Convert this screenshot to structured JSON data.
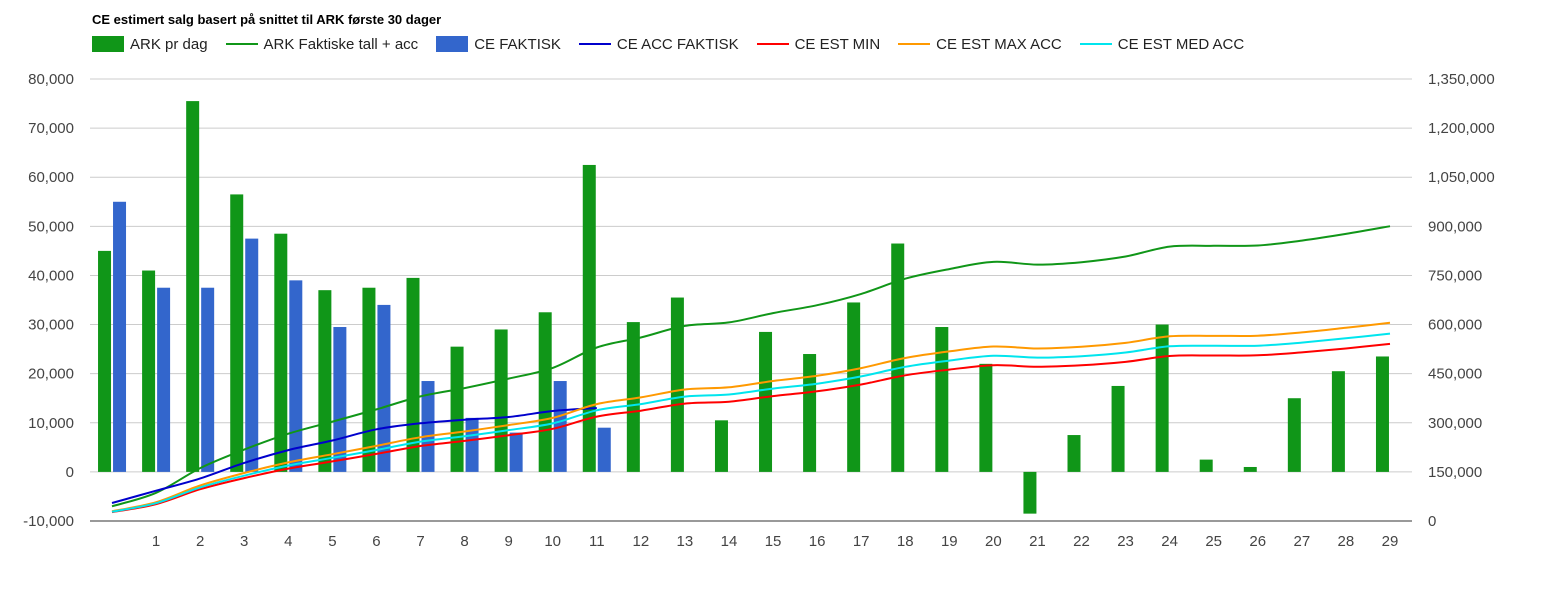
{
  "chart_data": {
    "type": "bar",
    "title": "CE estimert salg basert på snittet til ARK første 30 dager",
    "categories": [
      "",
      "1",
      "2",
      "3",
      "4",
      "5",
      "6",
      "7",
      "8",
      "9",
      "10",
      "11",
      "12",
      "13",
      "14",
      "15",
      "16",
      "17",
      "18",
      "19",
      "20",
      "21",
      "22",
      "23",
      "24",
      "25",
      "26",
      "27",
      "28",
      "29"
    ],
    "left_axis": {
      "ticks": [
        "80,000",
        "70,000",
        "60,000",
        "50,000",
        "40,000",
        "30,000",
        "20,000",
        "10,000",
        "0",
        "-10,000"
      ],
      "ylim": [
        -10000,
        80000
      ]
    },
    "right_axis": {
      "ticks": [
        "1,350,000",
        "1,200,000",
        "1,050,000",
        "900,000",
        "750,000",
        "600,000",
        "450,000",
        "300,000",
        "150,000",
        "0"
      ],
      "ylim": [
        0,
        1350000
      ]
    },
    "grid": true,
    "legend_position": "top",
    "series": [
      {
        "name": "ARK pr dag",
        "kind": "bar",
        "axis": "left",
        "color": "#109618",
        "values": [
          45000,
          41000,
          75500,
          56500,
          48500,
          37000,
          37500,
          39500,
          25500,
          29000,
          32500,
          62500,
          30500,
          35500,
          10500,
          28500,
          24000,
          34500,
          46500,
          29500,
          22000,
          -8500,
          7500,
          17500,
          30000,
          2500,
          1000,
          15000,
          20500,
          23500
        ]
      },
      {
        "name": "ARK Faktiske tall + acc",
        "kind": "line",
        "axis": "right",
        "color": "#109618",
        "values": [
          45000,
          86000,
          161500,
          218000,
          266500,
          303500,
          341000,
          380500,
          406000,
          435000,
          467500,
          530000,
          560500,
          596000,
          606500,
          635000,
          659000,
          693500,
          740000,
          769500,
          791500,
          783000,
          790500,
          808000,
          838000,
          840500,
          841500,
          856500,
          877000,
          900500
        ]
      },
      {
        "name": "CE FAKTISK",
        "kind": "bar",
        "axis": "left",
        "color": "#3366cc",
        "values": [
          55000,
          37500,
          37500,
          47500,
          39000,
          29500,
          34000,
          18500,
          11000,
          8000,
          18500,
          9000,
          null,
          null,
          null,
          null,
          null,
          null,
          null,
          null,
          null,
          null,
          null,
          null,
          null,
          null,
          null,
          null,
          null,
          null
        ]
      },
      {
        "name": "CE ACC FAKTISK",
        "kind": "line",
        "axis": "right",
        "color": "#0000cc",
        "values": [
          55000,
          92500,
          130000,
          177500,
          216500,
          246000,
          280000,
          298500,
          309500,
          317500,
          336000,
          345000,
          null,
          null,
          null,
          null,
          null,
          null,
          null,
          null,
          null,
          null,
          null,
          null,
          null,
          null,
          null,
          null,
          null,
          null
        ]
      },
      {
        "name": "CE EST MIN",
        "kind": "line",
        "axis": "right",
        "color": "#ff0000",
        "values": [
          27000,
          51500,
          97000,
          131000,
          160000,
          182000,
          205000,
          229000,
          244500,
          262000,
          281500,
          319000,
          337000,
          358500,
          364500,
          381500,
          396000,
          417000,
          445000,
          462500,
          476000,
          471000,
          475500,
          486000,
          504000,
          505500,
          506000,
          515000,
          527000,
          541000
        ]
      },
      {
        "name": "CE EST MAX ACC",
        "kind": "line",
        "axis": "right",
        "color": "#ff9900",
        "values": [
          30000,
          57500,
          108500,
          146500,
          179000,
          204000,
          229500,
          256000,
          273500,
          293000,
          315000,
          357000,
          377500,
          401500,
          408500,
          427500,
          443500,
          467000,
          498000,
          518000,
          533000,
          527000,
          532000,
          544000,
          564000,
          565500,
          566000,
          576000,
          590000,
          605500
        ]
      },
      {
        "name": "CE EST MED ACC",
        "kind": "line",
        "axis": "right",
        "color": "#00e5ee",
        "values": [
          28500,
          54500,
          102500,
          138500,
          169500,
          193000,
          217000,
          242500,
          259000,
          277500,
          298000,
          338000,
          357000,
          380000,
          386500,
          404500,
          419500,
          441500,
          471000,
          490000,
          504500,
          499000,
          503500,
          514500,
          533500,
          535000,
          535500,
          545000,
          558000,
          572500
        ]
      }
    ]
  }
}
